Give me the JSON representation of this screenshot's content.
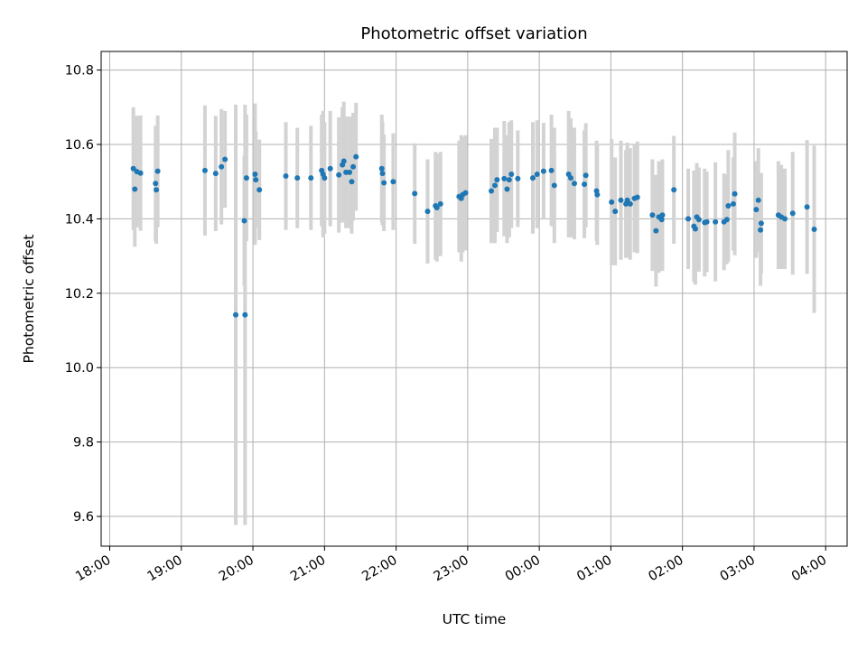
{
  "chart_data": {
    "type": "scatter",
    "title": "Photometric offset variation",
    "xlabel": "UTC time",
    "ylabel": "Photometric offset",
    "x_unit": "hours since 18:00 UTC (axis labels show clock time)",
    "xlim": [
      -0.12,
      10.3
    ],
    "ylim": [
      9.52,
      10.85
    ],
    "x_ticks": [
      0,
      1,
      2,
      3,
      4,
      5,
      6,
      7,
      8,
      9,
      10
    ],
    "x_tick_labels": [
      "18:00",
      "19:00",
      "20:00",
      "21:00",
      "22:00",
      "23:00",
      "00:00",
      "01:00",
      "02:00",
      "03:00",
      "04:00"
    ],
    "y_ticks": [
      9.6,
      9.8,
      10.0,
      10.2,
      10.4,
      10.6,
      10.8
    ],
    "y_tick_labels": [
      "9.6",
      "9.8",
      "10.0",
      "10.2",
      "10.4",
      "10.6",
      "10.8"
    ],
    "grid": true,
    "colors": {
      "marker": "#1f77b4",
      "errorbar": "#d3d3d3",
      "grid": "#b0b0b0"
    },
    "series": [
      {
        "points": [
          [
            0.33,
            10.535,
            0.165
          ],
          [
            0.35,
            10.48,
            0.155
          ],
          [
            0.38,
            10.527,
            0.15
          ],
          [
            0.43,
            10.523,
            0.155
          ],
          [
            0.64,
            10.495,
            0.155
          ],
          [
            0.65,
            10.478,
            0.145
          ],
          [
            0.67,
            10.528,
            0.15
          ],
          [
            1.33,
            10.53,
            0.175
          ],
          [
            1.48,
            10.522,
            0.155
          ],
          [
            1.56,
            10.54,
            0.155
          ],
          [
            1.61,
            10.56,
            0.13
          ],
          [
            1.76,
            10.142,
            0.565
          ],
          [
            1.88,
            10.395,
            0.175
          ],
          [
            1.89,
            10.142,
            0.565
          ],
          [
            1.91,
            10.51,
            0.17
          ],
          [
            2.03,
            10.52,
            0.19
          ],
          [
            2.04,
            10.505,
            0.13
          ],
          [
            2.09,
            10.478,
            0.135
          ],
          [
            2.46,
            10.515,
            0.145
          ],
          [
            2.62,
            10.51,
            0.135
          ],
          [
            2.81,
            10.51,
            0.14
          ],
          [
            2.96,
            10.53,
            0.15
          ],
          [
            2.98,
            10.52,
            0.17
          ],
          [
            3.0,
            10.51,
            0.15
          ],
          [
            3.08,
            10.535,
            0.155
          ],
          [
            3.2,
            10.518,
            0.155
          ],
          [
            3.25,
            10.545,
            0.155
          ],
          [
            3.27,
            10.555,
            0.16
          ],
          [
            3.3,
            10.525,
            0.15
          ],
          [
            3.35,
            10.525,
            0.15
          ],
          [
            3.38,
            10.5,
            0.14
          ],
          [
            3.4,
            10.54,
            0.145
          ],
          [
            3.44,
            10.567,
            0.145
          ],
          [
            3.8,
            10.535,
            0.145
          ],
          [
            3.81,
            10.522,
            0.14
          ],
          [
            3.83,
            10.497,
            0.13
          ],
          [
            3.96,
            10.5,
            0.13
          ],
          [
            4.26,
            10.468,
            0.135
          ],
          [
            4.44,
            10.42,
            0.14
          ],
          [
            4.55,
            10.435,
            0.145
          ],
          [
            4.57,
            10.43,
            0.145
          ],
          [
            4.62,
            10.44,
            0.14
          ],
          [
            4.88,
            10.46,
            0.15
          ],
          [
            4.91,
            10.455,
            0.17
          ],
          [
            4.93,
            10.465,
            0.155
          ],
          [
            4.97,
            10.47,
            0.155
          ],
          [
            5.33,
            10.475,
            0.14
          ],
          [
            5.38,
            10.49,
            0.155
          ],
          [
            5.41,
            10.505,
            0.14
          ],
          [
            5.51,
            10.508,
            0.155
          ],
          [
            5.55,
            10.48,
            0.145
          ],
          [
            5.58,
            10.505,
            0.155
          ],
          [
            5.61,
            10.52,
            0.145
          ],
          [
            5.7,
            10.508,
            0.13
          ],
          [
            5.91,
            10.51,
            0.15
          ],
          [
            5.97,
            10.52,
            0.145
          ],
          [
            6.06,
            10.528,
            0.13
          ],
          [
            6.17,
            10.53,
            0.15
          ],
          [
            6.21,
            10.49,
            0.155
          ],
          [
            6.41,
            10.52,
            0.17
          ],
          [
            6.44,
            10.51,
            0.16
          ],
          [
            6.49,
            10.495,
            0.15
          ],
          [
            6.63,
            10.493,
            0.145
          ],
          [
            6.65,
            10.517,
            0.14
          ],
          [
            6.8,
            10.475,
            0.135
          ],
          [
            6.81,
            10.465,
            0.135
          ],
          [
            7.01,
            10.445,
            0.17
          ],
          [
            7.06,
            10.42,
            0.145
          ],
          [
            7.14,
            10.45,
            0.16
          ],
          [
            7.21,
            10.44,
            0.145
          ],
          [
            7.23,
            10.45,
            0.155
          ],
          [
            7.27,
            10.44,
            0.15
          ],
          [
            7.33,
            10.455,
            0.145
          ],
          [
            7.37,
            10.458,
            0.15
          ],
          [
            7.58,
            10.41,
            0.15
          ],
          [
            7.63,
            10.368,
            0.15
          ],
          [
            7.67,
            10.405,
            0.15
          ],
          [
            7.72,
            10.41,
            0.15
          ],
          [
            7.71,
            10.398,
            0.135
          ],
          [
            7.88,
            10.478,
            0.145
          ],
          [
            8.08,
            10.4,
            0.135
          ],
          [
            8.16,
            10.38,
            0.15
          ],
          [
            8.18,
            10.373,
            0.15
          ],
          [
            8.2,
            10.405,
            0.145
          ],
          [
            8.23,
            10.398,
            0.14
          ],
          [
            8.31,
            10.39,
            0.145
          ],
          [
            8.34,
            10.392,
            0.135
          ],
          [
            8.46,
            10.392,
            0.16
          ],
          [
            8.58,
            10.392,
            0.13
          ],
          [
            8.62,
            10.398,
            0.12
          ],
          [
            8.64,
            10.435,
            0.15
          ],
          [
            8.71,
            10.44,
            0.125
          ],
          [
            8.73,
            10.467,
            0.165
          ],
          [
            9.03,
            10.425,
            0.13
          ],
          [
            9.06,
            10.45,
            0.14
          ],
          [
            9.09,
            10.37,
            0.15
          ],
          [
            9.1,
            10.388,
            0.135
          ],
          [
            9.34,
            10.41,
            0.145
          ],
          [
            9.38,
            10.405,
            0.14
          ],
          [
            9.43,
            10.4,
            0.135
          ],
          [
            9.54,
            10.415,
            0.165
          ],
          [
            9.74,
            10.432,
            0.18
          ],
          [
            9.84,
            10.372,
            0.225
          ]
        ]
      }
    ]
  }
}
